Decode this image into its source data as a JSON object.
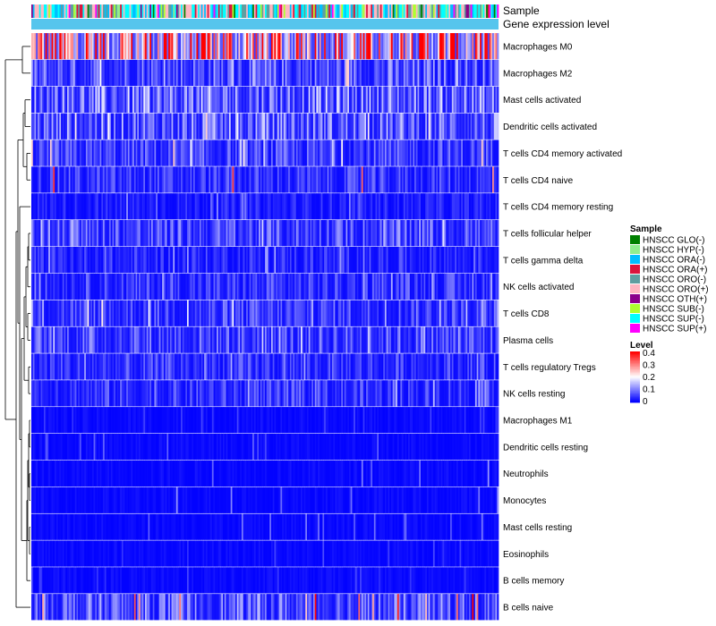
{
  "chart_data": {
    "type": "heatmap",
    "annotation_labels": [
      "Sample",
      "Gene expression level"
    ],
    "rows": [
      "Macrophages M0",
      "Macrophages M2",
      "Mast cells activated",
      "Dendritic cells activated",
      "T cells CD4 memory activated",
      "T cells CD4 naive",
      "T cells CD4 memory resting",
      "T cells follicular helper",
      "T cells gamma delta",
      "NK cells activated",
      "T cells CD8",
      "Plasma cells",
      "T cells regulatory  Tregs",
      "NK cells resting",
      "Macrophages M1",
      "Dendritic cells resting",
      "Neutrophils",
      "Monocytes",
      "Mast cells resting",
      "Eosinophils",
      "B cells memory",
      "B cells naive"
    ],
    "row_typical_level": [
      0.3,
      0.08,
      0.1,
      0.09,
      0.06,
      0.05,
      0.03,
      0.07,
      0.04,
      0.05,
      0.06,
      0.07,
      0.05,
      0.05,
      0.01,
      0.01,
      0.01,
      0.01,
      0.01,
      0.01,
      0.01,
      0.08
    ],
    "row_max_level": [
      0.4,
      0.25,
      0.2,
      0.24,
      0.25,
      0.4,
      0.12,
      0.18,
      0.14,
      0.14,
      0.22,
      0.18,
      0.15,
      0.15,
      0.06,
      0.08,
      0.12,
      0.12,
      0.1,
      0.06,
      0.06,
      0.4
    ],
    "n_samples": 300,
    "sample_legend": {
      "title": "Sample",
      "items": [
        {
          "label": "HNSCC GLO(-)",
          "color": "#008000"
        },
        {
          "label": "HNSCC HYP(-)",
          "color": "#90EE90"
        },
        {
          "label": "HNSCC ORA(-)",
          "color": "#00BFFF"
        },
        {
          "label": "HNSCC ORA(+)",
          "color": "#DC143C"
        },
        {
          "label": "HNSCC ORO(-)",
          "color": "#5F9EA0"
        },
        {
          "label": "HNSCC ORO(+)",
          "color": "#FFB6C1"
        },
        {
          "label": "HNSCC OTH(+)",
          "color": "#8B008B"
        },
        {
          "label": "HNSCC SUB(-)",
          "color": "#ADFF2F"
        },
        {
          "label": "HNSCC SUP(-)",
          "color": "#00FFFF"
        },
        {
          "label": "HNSCC SUP(+)",
          "color": "#FF00FF"
        }
      ]
    },
    "level_legend": {
      "title": "Level",
      "ticks": [
        "0.4",
        "0.3",
        "0.2",
        "0.1",
        "0"
      ],
      "range": [
        0,
        0.4
      ],
      "colors": {
        "low": "#0000FF",
        "mid": "#FFFFFF",
        "high": "#FF0000"
      }
    },
    "gene_expression_color": "#56C5ED"
  }
}
